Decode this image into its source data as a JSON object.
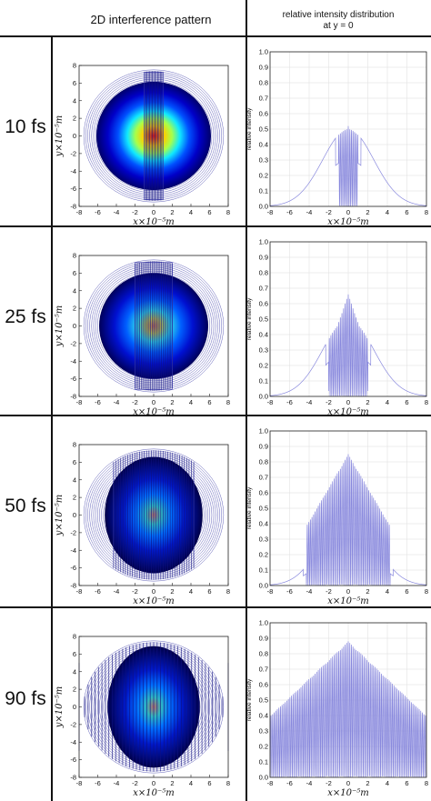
{
  "header": {
    "left_title": "2D interference pattern",
    "right_title_line1": "relative intensity distribution",
    "right_title_line2": "at y = 0"
  },
  "rows": [
    {
      "label": "10 fs"
    },
    {
      "label": "25 fs"
    },
    {
      "label": "50 fs"
    },
    {
      "label": "90 fs"
    }
  ],
  "colors": {
    "line": "#8888dd",
    "contour": "#3a3aa8",
    "grid": "#dddddd",
    "border": "#111111"
  },
  "chart_data": [
    {
      "type": "contour",
      "row": "10 fs",
      "xlabel": "x×10⁻⁵m",
      "ylabel": "y×10⁻⁵m",
      "xlim": [
        -8,
        8
      ],
      "ylim": [
        -8,
        8
      ],
      "xticks": [
        "-8",
        "-6",
        "-4",
        "-2",
        "0",
        "2",
        "4",
        "6",
        "8"
      ],
      "yticks": [
        "8",
        "6",
        "4",
        "2",
        "0",
        "-2",
        "-4",
        "-6",
        "-8"
      ],
      "fringe_half_width": 1,
      "peak_intensity": 1.0
    },
    {
      "type": "line",
      "row": "10 fs",
      "ylabel": "relative intensity",
      "xlabel": "x×10⁻⁵m",
      "xlim": [
        -8,
        8
      ],
      "ylim": [
        0,
        1
      ],
      "xticks": [
        "-8",
        "-6",
        "-4",
        "-2",
        "0",
        "2",
        "4",
        "6",
        "8"
      ],
      "yticks": [
        "1.0",
        "0.9",
        "0.8",
        "0.7",
        "0.6",
        "0.5",
        "0.4",
        "0.3",
        "0.2",
        "0.1",
        "0.0"
      ],
      "envelope_peak": 0.5,
      "envelope_sigma": 2.6,
      "fringe_half_width": 1,
      "fringe_peak": 0.52,
      "grid": true
    },
    {
      "type": "contour",
      "row": "25 fs",
      "xlabel": "x×10⁻⁵m",
      "ylabel": "y×10⁻⁵m",
      "xlim": [
        -8,
        8
      ],
      "ylim": [
        -8,
        8
      ],
      "xticks": [
        "-8",
        "-6",
        "-4",
        "-2",
        "0",
        "2",
        "4",
        "6",
        "8"
      ],
      "yticks": [
        "8",
        "6",
        "4",
        "2",
        "0",
        "-2",
        "-4",
        "-6",
        "-8"
      ],
      "fringe_half_width": 2,
      "peak_intensity": 0.65
    },
    {
      "type": "line",
      "row": "25 fs",
      "ylabel": "relative intensity",
      "xlabel": "x×10⁻⁵m",
      "xlim": [
        -8,
        8
      ],
      "ylim": [
        0,
        1
      ],
      "xticks": [
        "-8",
        "-6",
        "-4",
        "-2",
        "0",
        "2",
        "4",
        "6",
        "8"
      ],
      "yticks": [
        "1.0",
        "0.9",
        "0.8",
        "0.7",
        "0.6",
        "0.5",
        "0.4",
        "0.3",
        "0.2",
        "0.1",
        "0.0"
      ],
      "envelope_peak": 0.5,
      "envelope_sigma": 2.6,
      "fringe_half_width": 2,
      "fringe_peak": 0.66,
      "grid": true
    },
    {
      "type": "contour",
      "row": "50 fs",
      "xlabel": "x×10⁻⁵m",
      "ylabel": "y×10⁻⁵m",
      "xlim": [
        -8,
        8
      ],
      "ylim": [
        -8,
        8
      ],
      "xticks": [
        "-8",
        "-6",
        "-4",
        "-2",
        "0",
        "2",
        "4",
        "6",
        "8"
      ],
      "yticks": [
        "8",
        "6",
        "4",
        "2",
        "0",
        "-2",
        "-4",
        "-6",
        "-8"
      ],
      "fringe_half_width": 4.3,
      "peak_intensity": 0.45
    },
    {
      "type": "line",
      "row": "50 fs",
      "ylabel": "relative intensity",
      "xlabel": "x×10⁻⁵m",
      "xlim": [
        -8,
        8
      ],
      "ylim": [
        0,
        1
      ],
      "xticks": [
        "-8",
        "-6",
        "-4",
        "-2",
        "0",
        "2",
        "4",
        "6",
        "8"
      ],
      "yticks": [
        "1.0",
        "0.9",
        "0.8",
        "0.7",
        "0.6",
        "0.5",
        "0.4",
        "0.3",
        "0.2",
        "0.1",
        "0.0"
      ],
      "envelope_peak": 0.5,
      "envelope_sigma": 2.6,
      "fringe_half_width": 4.3,
      "fringe_peak": 0.85,
      "grid": true
    },
    {
      "type": "contour",
      "row": "90 fs",
      "xlabel": "x×10⁻⁵m",
      "ylabel": "y×10⁻⁵m",
      "xlim": [
        -8,
        8
      ],
      "ylim": [
        -8,
        8
      ],
      "xticks": [
        "-8",
        "-6",
        "-4",
        "-2",
        "0",
        "2",
        "4",
        "6",
        "8"
      ],
      "yticks": [
        "8",
        "6",
        "4",
        "2",
        "0",
        "-2",
        "-4",
        "-6",
        "-8"
      ],
      "fringe_half_width": 8,
      "peak_intensity": 0.4
    },
    {
      "type": "line",
      "row": "90 fs",
      "ylabel": "relative intensity",
      "xlabel": "x×10⁻⁵m",
      "xlim": [
        -8,
        8
      ],
      "ylim": [
        0,
        1
      ],
      "xticks": [
        "-8",
        "-6",
        "-4",
        "-2",
        "0",
        "2",
        "4",
        "6",
        "8"
      ],
      "yticks": [
        "1.0",
        "0.9",
        "0.8",
        "0.7",
        "0.6",
        "0.5",
        "0.4",
        "0.3",
        "0.2",
        "0.1",
        "0.0"
      ],
      "envelope_peak": 0.5,
      "envelope_sigma": 2.6,
      "fringe_half_width": 8,
      "fringe_peak": 0.88,
      "grid": true
    }
  ]
}
